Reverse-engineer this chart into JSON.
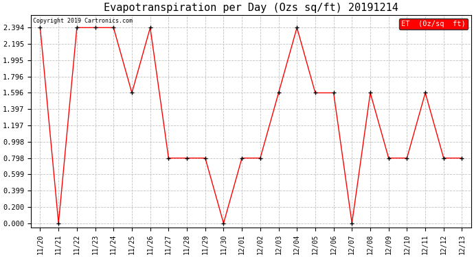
{
  "title": "Evapotranspiration per Day (Ozs sq/ft) 20191214",
  "copyright": "Copyright 2019 Cartronics.com",
  "legend_label": "ET  (0z/sq  ft)",
  "dates": [
    "11/20",
    "11/21",
    "11/22",
    "11/23",
    "11/24",
    "11/25",
    "11/26",
    "11/27",
    "11/28",
    "11/29",
    "11/30",
    "12/01",
    "12/02",
    "12/03",
    "12/04",
    "12/05",
    "12/06",
    "12/07",
    "12/08",
    "12/09",
    "12/10",
    "12/11",
    "12/12",
    "12/13"
  ],
  "values": [
    2.394,
    0.0,
    2.394,
    2.394,
    2.394,
    1.596,
    2.394,
    0.798,
    0.798,
    0.798,
    0.0,
    0.798,
    0.798,
    1.596,
    2.394,
    1.596,
    1.596,
    0.0,
    1.596,
    0.798,
    0.798,
    1.596,
    0.798,
    0.798
  ],
  "yticks": [
    0.0,
    0.2,
    0.399,
    0.599,
    0.798,
    0.998,
    1.197,
    1.397,
    1.596,
    1.796,
    1.995,
    2.195,
    2.394
  ],
  "ylim": [
    -0.05,
    2.55
  ],
  "line_color": "red",
  "marker_color": "black",
  "bg_color": "#ffffff",
  "grid_color": "#c0c0c0",
  "title_fontsize": 11,
  "legend_bg": "red",
  "legend_text_color": "white"
}
